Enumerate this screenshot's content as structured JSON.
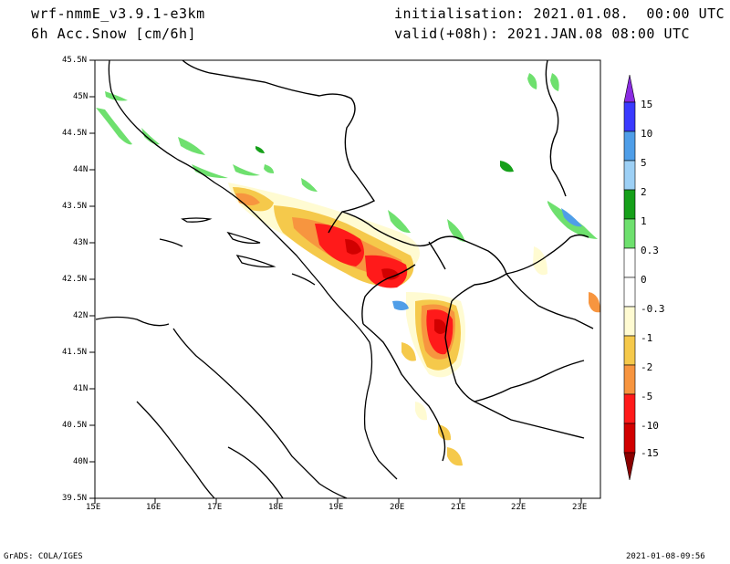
{
  "header": {
    "model": "wrf-nmmE_v3.9.1-e3km",
    "field": "6h Acc.Snow [cm/6h]",
    "init": "initialisation: 2021.01.08.  00:00 UTC",
    "valid": "valid(+08h): 2021.JAN.08 08:00 UTC"
  },
  "map": {
    "lat_labels": [
      "45.5N",
      "45N",
      "44.5N",
      "44N",
      "43.5N",
      "43N",
      "42.5N",
      "42N",
      "41.5N",
      "41N",
      "40.5N",
      "40N",
      "39.5N"
    ],
    "lon_labels": [
      "15E",
      "16E",
      "17E",
      "18E",
      "19E",
      "20E",
      "21E",
      "22E",
      "23E"
    ]
  },
  "legend": {
    "labels": [
      "15",
      "10",
      "5",
      "2",
      "1",
      "0.3",
      "0",
      "-0.3",
      "-1",
      "-2",
      "-5",
      "-10",
      "-15"
    ],
    "colors": [
      "#8a2be2",
      "#3a3aff",
      "#4f9ee8",
      "#9dd0f5",
      "#16a01a",
      "#6ee06e",
      "#ffffff",
      "#fffbd2",
      "#f5c94b",
      "#f7953f",
      "#ff1a1a",
      "#d10000",
      "#8a0000"
    ]
  },
  "footer": {
    "left": "GrADS: COLA/IGES",
    "right": "2021-01-08-09:56"
  }
}
